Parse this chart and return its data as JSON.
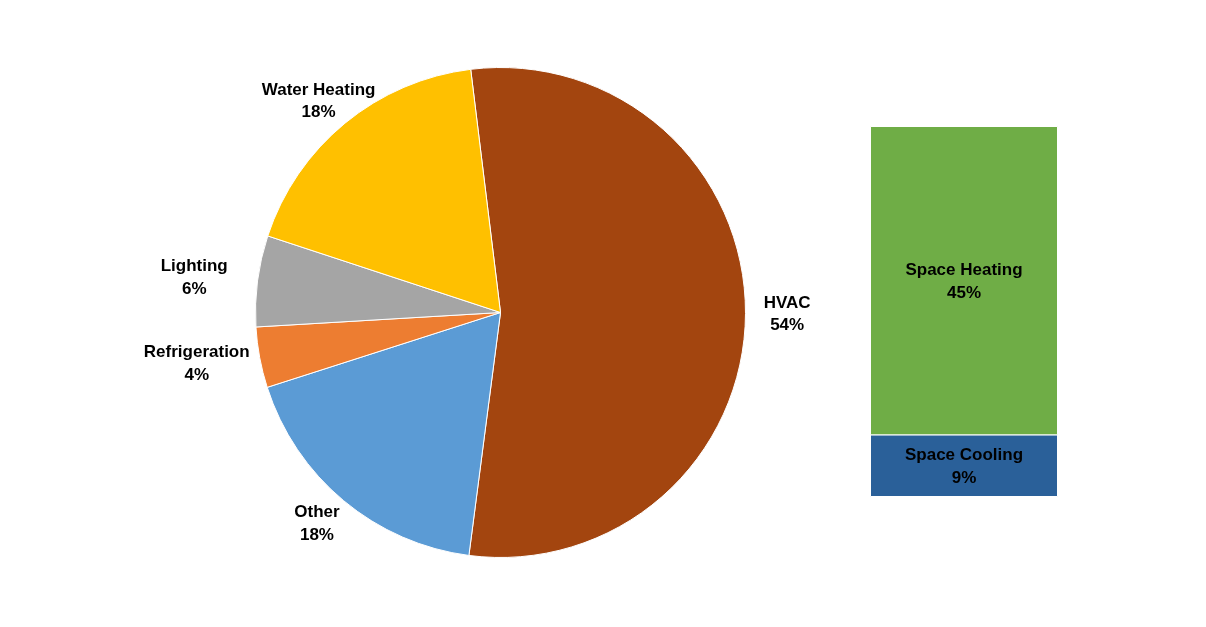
{
  "chart_data": [
    {
      "type": "pie",
      "categories": [
        "HVAC",
        "Other",
        "Refrigeration",
        "Lighting",
        "Water Heating"
      ],
      "values": [
        54,
        18,
        4,
        6,
        18
      ],
      "colors": [
        "#a3450f",
        "#5b9bd5",
        "#ed7d31",
        "#a5a5a5",
        "#ffc000"
      ],
      "value_labels": [
        "54%",
        "18%",
        "4%",
        "6%",
        "18%"
      ]
    },
    {
      "type": "bar",
      "stacked": true,
      "categories": [
        null
      ],
      "series": [
        {
          "name": "Space Cooling",
          "color": "#2a6099",
          "values": [
            9
          ],
          "value_labels": [
            "9%"
          ]
        },
        {
          "name": "Space Heating",
          "color": "#6fad46",
          "values": [
            45
          ],
          "value_labels": [
            "45%"
          ]
        }
      ]
    }
  ]
}
